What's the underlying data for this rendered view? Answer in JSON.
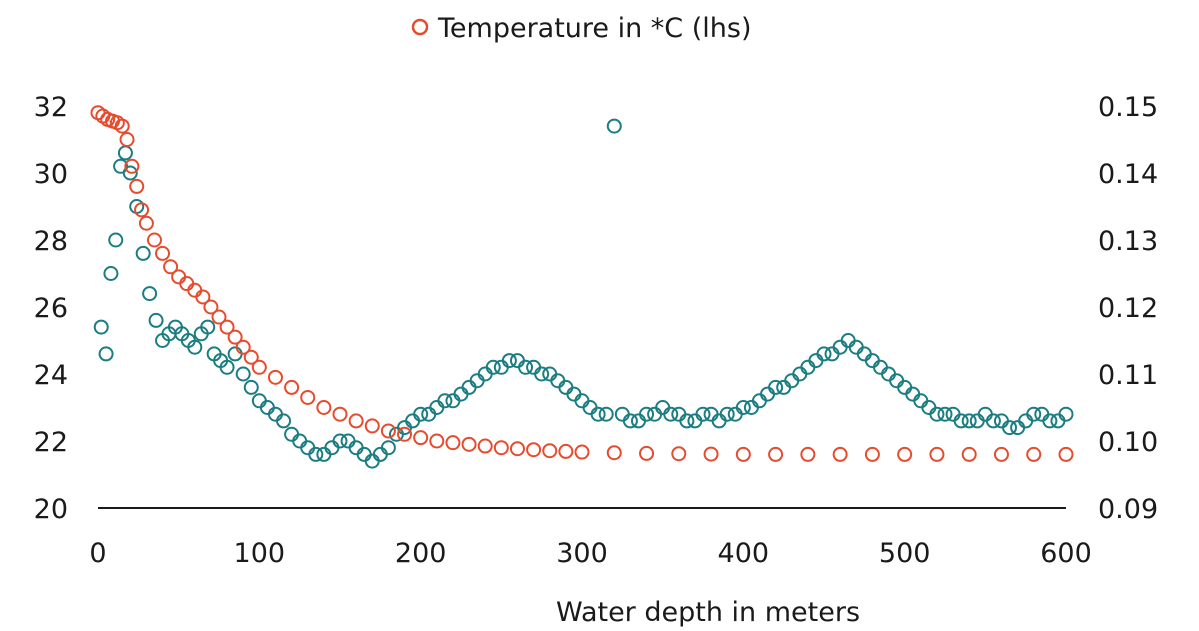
{
  "chart_data": {
    "type": "scatter",
    "xlabel": "Water depth in meters",
    "x_ticks": [
      "0",
      "100",
      "200",
      "300",
      "400",
      "500",
      "600"
    ],
    "left_ticks": [
      "20",
      "22",
      "24",
      "26",
      "28",
      "30",
      "32"
    ],
    "right_ticks": [
      "0.09",
      "0.10",
      "0.11",
      "0.12",
      "0.13",
      "0.14",
      "0.15"
    ],
    "xlim": [
      0,
      600
    ],
    "ylim_left": [
      20,
      32
    ],
    "ylim_right": [
      0.09,
      0.15
    ],
    "legend": {
      "placement": "top-center",
      "entries": [
        "Temperature in *C (lhs)"
      ]
    },
    "series": [
      {
        "name": "Temperature in *C (lhs)",
        "axis": "left",
        "color": "#e64b2e",
        "x": [
          0,
          3,
          6,
          9,
          12,
          15,
          18,
          21,
          24,
          27,
          30,
          35,
          40,
          45,
          50,
          55,
          60,
          65,
          70,
          75,
          80,
          85,
          90,
          95,
          100,
          110,
          120,
          130,
          140,
          150,
          160,
          170,
          180,
          190,
          200,
          210,
          220,
          230,
          240,
          250,
          260,
          270,
          280,
          290,
          300,
          320,
          340,
          360,
          380,
          400,
          420,
          440,
          460,
          480,
          500,
          520,
          540,
          560,
          580,
          600
        ],
        "y": [
          31.8,
          31.7,
          31.6,
          31.55,
          31.5,
          31.4,
          31.0,
          30.2,
          29.6,
          28.9,
          28.5,
          28.0,
          27.6,
          27.2,
          26.9,
          26.7,
          26.5,
          26.3,
          26.0,
          25.7,
          25.4,
          25.1,
          24.8,
          24.5,
          24.2,
          23.9,
          23.6,
          23.3,
          23.0,
          22.8,
          22.6,
          22.45,
          22.3,
          22.2,
          22.1,
          22.0,
          21.95,
          21.9,
          21.85,
          21.8,
          21.77,
          21.74,
          21.71,
          21.69,
          21.67,
          21.65,
          21.63,
          21.62,
          21.61,
          21.6,
          21.6,
          21.6,
          21.6,
          21.6,
          21.6,
          21.6,
          21.6,
          21.6,
          21.6,
          21.6
        ]
      },
      {
        "name": "",
        "axis": "right",
        "color": "#1b7d82",
        "x": [
          2,
          5,
          8,
          11,
          14,
          17,
          20,
          24,
          28,
          32,
          36,
          40,
          44,
          48,
          52,
          56,
          60,
          64,
          68,
          72,
          76,
          80,
          85,
          90,
          95,
          100,
          105,
          110,
          115,
          120,
          125,
          130,
          135,
          140,
          145,
          150,
          155,
          160,
          165,
          170,
          175,
          180,
          185,
          190,
          195,
          200,
          205,
          210,
          215,
          220,
          225,
          230,
          235,
          240,
          245,
          250,
          255,
          260,
          265,
          270,
          275,
          280,
          285,
          290,
          295,
          300,
          305,
          310,
          315,
          320,
          325,
          330,
          335,
          340,
          345,
          350,
          355,
          360,
          365,
          370,
          375,
          380,
          385,
          390,
          395,
          400,
          405,
          410,
          415,
          420,
          425,
          430,
          435,
          440,
          445,
          450,
          455,
          460,
          465,
          470,
          475,
          480,
          485,
          490,
          495,
          500,
          505,
          510,
          515,
          520,
          525,
          530,
          535,
          540,
          545,
          550,
          555,
          560,
          565,
          570,
          575,
          580,
          585,
          590,
          595,
          600
        ],
        "y": [
          0.117,
          0.113,
          0.125,
          0.13,
          0.141,
          0.143,
          0.14,
          0.135,
          0.128,
          0.122,
          0.118,
          0.115,
          0.116,
          0.117,
          0.116,
          0.115,
          0.114,
          0.116,
          0.117,
          0.113,
          0.112,
          0.111,
          0.113,
          0.11,
          0.108,
          0.106,
          0.105,
          0.104,
          0.103,
          0.101,
          0.1,
          0.099,
          0.098,
          0.098,
          0.099,
          0.1,
          0.1,
          0.099,
          0.098,
          0.097,
          0.098,
          0.099,
          0.101,
          0.102,
          0.103,
          0.104,
          0.104,
          0.105,
          0.106,
          0.106,
          0.107,
          0.108,
          0.109,
          0.11,
          0.111,
          0.111,
          0.112,
          0.112,
          0.111,
          0.111,
          0.11,
          0.11,
          0.109,
          0.108,
          0.107,
          0.106,
          0.105,
          0.104,
          0.104,
          0.147,
          0.104,
          0.103,
          0.103,
          0.104,
          0.104,
          0.105,
          0.104,
          0.104,
          0.103,
          0.103,
          0.104,
          0.104,
          0.103,
          0.104,
          0.104,
          0.105,
          0.105,
          0.106,
          0.107,
          0.108,
          0.108,
          0.109,
          0.11,
          0.111,
          0.112,
          0.113,
          0.113,
          0.114,
          0.115,
          0.114,
          0.113,
          0.112,
          0.111,
          0.11,
          0.109,
          0.108,
          0.107,
          0.106,
          0.105,
          0.104,
          0.104,
          0.104,
          0.103,
          0.103,
          0.103,
          0.104,
          0.103,
          0.103,
          0.102,
          0.102,
          0.103,
          0.104,
          0.104,
          0.103,
          0.103,
          0.104
        ]
      }
    ]
  }
}
